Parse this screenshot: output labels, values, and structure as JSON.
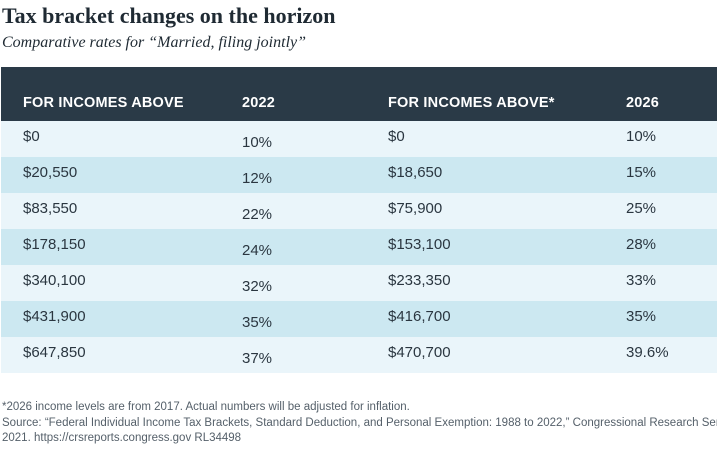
{
  "title": "Tax bracket changes on the horizon",
  "subtitle": "Comparative rates for “Married, filing jointly”",
  "table": {
    "headers": [
      "FOR INCOMES ABOVE",
      "2022",
      "FOR INCOMES ABOVE*",
      "2026"
    ],
    "rows": [
      [
        "$0",
        "10%",
        "$0",
        "10%"
      ],
      [
        "$20,550",
        "12%",
        "$18,650",
        "15%"
      ],
      [
        "$83,550",
        "22%",
        "$75,900",
        "25%"
      ],
      [
        "$178,150",
        "24%",
        "$153,100",
        "28%"
      ],
      [
        "$340,100",
        "32%",
        "$233,350",
        "33%"
      ],
      [
        "$431,900",
        "35%",
        "$416,700",
        "35%"
      ],
      [
        "$647,850",
        "37%",
        "$470,700",
        "39.6%"
      ]
    ]
  },
  "notes": {
    "footnote": "*2026 income levels are from 2017. Actual numbers will be adjusted for inflation.",
    "source_line1": "Source: “Federal Individual Income Tax Brackets, Standard Deduction, and Personal Exemption: 1988 to 2022,” Congressional Research Service,",
    "source_line2": "2021. https://crsreports.congress.gov RL34498"
  },
  "colors": {
    "header_bg": "#2a3a47",
    "row_light": "#eaf5fa",
    "row_dark": "#cce8f1",
    "text": "#1f2a33"
  }
}
